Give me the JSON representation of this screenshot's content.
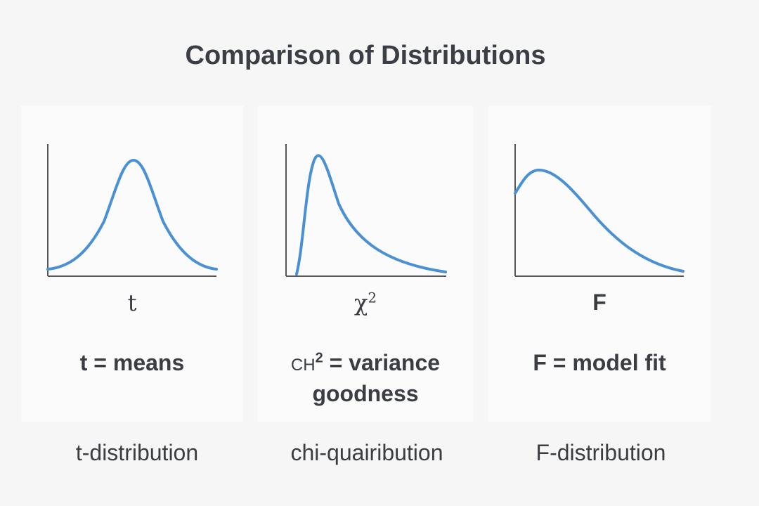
{
  "title": "Comparison of Distributions",
  "colors": {
    "curve": "#4a90d4",
    "axis": "#555555",
    "text": "#3a3d42"
  },
  "panels": [
    {
      "axis_label": "t",
      "caption": "t = means",
      "footer": "t-distribution"
    },
    {
      "axis_label": "χ",
      "axis_label_sup": "2",
      "caption_prefix": "CH",
      "caption_sup": "2",
      "caption_line1": " = variance",
      "caption_line2": "goodness",
      "footer": "chi-quairibution"
    },
    {
      "axis_label": "F",
      "caption": "F = model fit",
      "footer": "F-distribution"
    }
  ]
}
